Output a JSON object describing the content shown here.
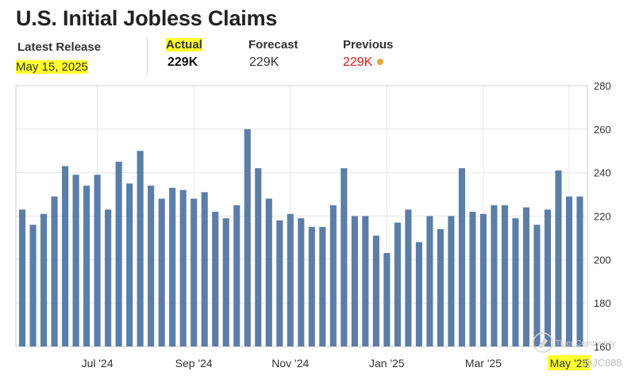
{
  "header": {
    "title": "U.S. Initial Jobless Claims",
    "latest_release_label": "Latest Release",
    "latest_release_date": "May 15, 2025",
    "actual_label": "Actual",
    "actual_value": "229K",
    "forecast_label": "Forecast",
    "forecast_value": "229K",
    "previous_label": "Previous",
    "previous_value": "229K",
    "previous_dot_icon": "circle-dot-icon"
  },
  "colors": {
    "bar": "#5b7ea8",
    "highlight": "#ffff2e",
    "previous_value": "#d81e1e",
    "previous_dot": "#e3a73a",
    "grid": "#e6e6e6"
  },
  "watermark": {
    "logo_icon": "tiger-logo-icon",
    "text": "Tiger Community",
    "handle": "@JC888"
  },
  "chart_data": {
    "type": "bar",
    "title": "",
    "xlabel": "",
    "ylabel": "",
    "ylim": [
      160,
      280
    ],
    "y_ticks": [
      "160",
      "180",
      "200",
      "220",
      "240",
      "260",
      "280"
    ],
    "y_axis_side": "right",
    "grid": true,
    "x_tick_labels": [
      {
        "label": "Jul '24",
        "index": 7
      },
      {
        "label": "Sep '24",
        "index": 16
      },
      {
        "label": "Nov '24",
        "index": 25
      },
      {
        "label": "Jan '25",
        "index": 34
      },
      {
        "label": "Mar '25",
        "index": 43
      },
      {
        "label": "May '25",
        "index": 51
      }
    ],
    "highlighted_tick": "May '25",
    "values": [
      223,
      216,
      221,
      229,
      243,
      239,
      234,
      239,
      223,
      245,
      235,
      250,
      234,
      228,
      233,
      232,
      228,
      231,
      222,
      219,
      225,
      260,
      242,
      228,
      218,
      221,
      219,
      215,
      215,
      225,
      242,
      220,
      220,
      211,
      203,
      217,
      223,
      208,
      220,
      214,
      220,
      242,
      222,
      221,
      225,
      225,
      219,
      224,
      216,
      223,
      241,
      229,
      229
    ]
  }
}
